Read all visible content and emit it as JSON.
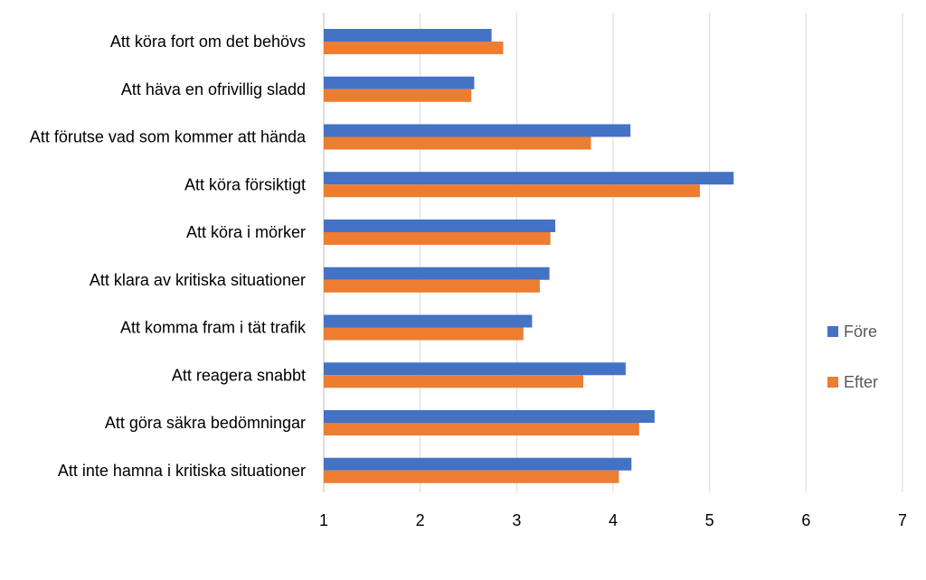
{
  "chart_data": {
    "type": "bar",
    "orientation": "horizontal",
    "categories": [
      "Att köra fort om det behövs",
      "Att häva en ofrivillig sladd",
      "Att förutse vad som kommer att hända",
      "Att köra försiktigt",
      "Att köra i mörker",
      "Att klara av kritiska situationer",
      "Att komma fram i tät trafik",
      "Att reagera snabbt",
      "Att göra säkra bedömningar",
      "Att inte hamna i kritiska situationer"
    ],
    "series": [
      {
        "name": "Före",
        "color": "#4472C4",
        "values": [
          2.74,
          2.56,
          4.18,
          5.25,
          3.4,
          3.34,
          3.16,
          4.13,
          4.43,
          4.19
        ]
      },
      {
        "name": "Efter",
        "color": "#ED7D31",
        "values": [
          2.86,
          2.53,
          3.77,
          4.9,
          3.35,
          3.24,
          3.07,
          3.69,
          4.27,
          4.06
        ]
      }
    ],
    "xlim": [
      1,
      7
    ],
    "xticks": [
      1,
      2,
      3,
      4,
      5,
      6,
      7
    ],
    "grid": true,
    "legend_position": "right",
    "title": "",
    "xlabel": "",
    "ylabel": ""
  }
}
